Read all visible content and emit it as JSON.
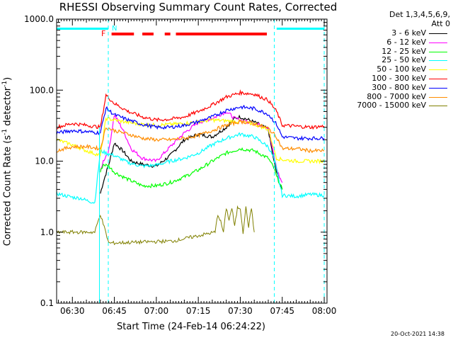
{
  "header": {
    "title": "RHESSI Observing Summary Count Rates, Corrected",
    "detectors_line1": "Det 1,3,4,5,6,9,",
    "detectors_line2": "Att 0"
  },
  "footer": {
    "timestamp": "20-Oct-2021 14:38"
  },
  "flags": {
    "f_label": "F",
    "n_label": "N"
  },
  "colors": {
    "axes": "#000000",
    "flag_f": "#ff0000",
    "flag_n": "#00ffff"
  },
  "chart_data": {
    "type": "line",
    "title": "RHESSI Observing Summary Count Rates, Corrected",
    "xlabel": "Start Time (24-Feb-14 06:24:22)",
    "ylabel_main": "Corrected Count Rate (s",
    "ylabel_sup": "-1",
    "ylabel_mid": " detector",
    "ylabel_end": ")",
    "yscale": "log",
    "xlim": [
      "06:24:22",
      "08:01:00"
    ],
    "ylim": [
      0.1,
      1000.0
    ],
    "x_ticks": [
      "06:30",
      "06:45",
      "07:00",
      "07:15",
      "07:30",
      "07:45",
      "08:00"
    ],
    "y_ticks": [
      {
        "value": 0.1,
        "label": "0.1"
      },
      {
        "value": 1,
        "label": "1.0"
      },
      {
        "value": 10,
        "label": "10.0"
      },
      {
        "value": 100,
        "label": "100.0"
      },
      {
        "value": 1000,
        "label": "1000.0"
      }
    ],
    "legend_position": "outside-right",
    "flag_bars": {
      "saa": [
        [
          "06:24:22",
          "06:42:50"
        ],
        [
          "07:43:00",
          "08:00:00"
        ]
      ],
      "flare": [
        [
          "06:44:00",
          "06:52:00"
        ],
        [
          "06:55:00",
          "06:59:00"
        ],
        [
          "07:03:00",
          "07:05:00"
        ],
        [
          "07:07:00",
          "07:39:30"
        ]
      ]
    },
    "night_markers": [
      "06:42:50",
      "07:42:10",
      "08:00:00"
    ],
    "series": [
      {
        "name": "3 - 6 keV",
        "color": "#000000",
        "x": [
          "06:40",
          "06:41",
          "06:43",
          "06:45",
          "06:48",
          "06:51",
          "06:55",
          "07:00",
          "07:05",
          "07:10",
          "07:15",
          "07:20",
          "07:25",
          "07:28",
          "07:30",
          "07:33",
          "07:36",
          "07:40",
          "07:42",
          "07:43",
          "07:44",
          "07:45"
        ],
        "values": [
          3.5,
          5,
          9,
          18,
          14,
          10,
          9,
          8.5,
          12,
          20,
          24,
          22,
          30,
          40,
          42,
          38,
          34,
          28,
          10,
          7,
          5,
          4
        ]
      },
      {
        "name": "6 - 12 keV",
        "color": "#ff00ff",
        "x": [
          "06:40",
          "06:41",
          "06:43",
          "06:45",
          "06:48",
          "06:51",
          "06:55",
          "07:00",
          "07:05",
          "07:10",
          "07:15",
          "07:20",
          "07:25",
          "07:28",
          "07:30",
          "07:33",
          "07:36",
          "07:40",
          "07:42",
          "07:43",
          "07:44",
          "07:45"
        ],
        "values": [
          7,
          10,
          14,
          45,
          28,
          15,
          11,
          10,
          16,
          25,
          35,
          40,
          50,
          40,
          38,
          35,
          33,
          30,
          12,
          8,
          6,
          5
        ]
      },
      {
        "name": "12 - 25 keV",
        "color": "#00ff00",
        "x": [
          "06:40",
          "06:41",
          "06:43",
          "06:45",
          "06:50",
          "06:55",
          "07:00",
          "07:05",
          "07:10",
          "07:15",
          "07:20",
          "07:25",
          "07:30",
          "07:35",
          "07:40",
          "07:42",
          "07:43",
          "07:44",
          "07:45"
        ],
        "values": [
          7,
          9,
          8.5,
          7,
          5.5,
          4.5,
          4.5,
          5,
          6,
          7.5,
          10,
          13,
          15,
          14,
          11,
          8,
          6,
          5,
          4
        ]
      },
      {
        "name": "25 - 50 keV",
        "color": "#00ffff",
        "x": [
          "06:24:22",
          "06:27",
          "06:30",
          "06:33",
          "06:35",
          "06:38",
          "06:40",
          "06:42",
          "06:45",
          "06:50",
          "06:55",
          "07:00",
          "07:05",
          "07:10",
          "07:15",
          "07:20",
          "07:25",
          "07:30",
          "07:35",
          "07:40",
          "07:42",
          "07:43",
          "07:45",
          "07:50",
          "07:55",
          "08:00"
        ],
        "values": [
          3.5,
          3.3,
          3.1,
          3,
          2.8,
          2.6,
          14,
          13,
          12,
          9.5,
          8.5,
          8.8,
          10,
          11,
          13,
          17,
          21,
          24,
          22,
          16,
          11,
          7.5,
          3.3,
          3.2,
          3.4,
          3.3
        ]
      },
      {
        "name": "50 - 100 keV",
        "color": "#ffff00",
        "x": [
          "06:24:22",
          "06:30",
          "06:35",
          "06:40",
          "06:42",
          "06:45",
          "06:50",
          "06:55",
          "07:00",
          "07:10",
          "07:20",
          "07:30",
          "07:35",
          "07:40",
          "07:43",
          "07:45",
          "07:50",
          "07:55",
          "08:00"
        ],
        "values": [
          20,
          17,
          14,
          12,
          40,
          38,
          35,
          33,
          32,
          34,
          38,
          36,
          33,
          28,
          11,
          10.5,
          10,
          10,
          10
        ]
      },
      {
        "name": "100 - 300 keV",
        "color": "#ff0000",
        "x": [
          "06:24:22",
          "06:30",
          "06:35",
          "06:40",
          "06:42",
          "06:45",
          "06:50",
          "06:55",
          "07:00",
          "07:05",
          "07:10",
          "07:15",
          "07:20",
          "07:25",
          "07:30",
          "07:35",
          "07:40",
          "07:43",
          "07:45",
          "07:50",
          "07:55",
          "08:00"
        ],
        "values": [
          30,
          34,
          32,
          30,
          85,
          65,
          50,
          42,
          38,
          39,
          42,
          50,
          62,
          80,
          92,
          88,
          72,
          50,
          32,
          31,
          30,
          31
        ]
      },
      {
        "name": "300 - 800 keV",
        "color": "#0000ff",
        "x": [
          "06:24:22",
          "06:30",
          "06:35",
          "06:40",
          "06:42",
          "06:45",
          "06:50",
          "06:55",
          "07:00",
          "07:05",
          "07:10",
          "07:15",
          "07:20",
          "07:25",
          "07:30",
          "07:35",
          "07:40",
          "07:43",
          "07:45",
          "07:50",
          "07:55",
          "08:00"
        ],
        "values": [
          25,
          27,
          26,
          25,
          56,
          45,
          38,
          33,
          30,
          30,
          32,
          36,
          42,
          52,
          58,
          55,
          46,
          33,
          22,
          21,
          21,
          21
        ]
      },
      {
        "name": "800 - 7000 keV",
        "color": "#ff8c00",
        "x": [
          "06:24:22",
          "06:30",
          "06:35",
          "06:40",
          "06:42",
          "06:45",
          "06:50",
          "06:55",
          "07:00",
          "07:05",
          "07:10",
          "07:15",
          "07:20",
          "07:25",
          "07:30",
          "07:35",
          "07:40",
          "07:43",
          "07:45",
          "07:50",
          "07:55",
          "08:00"
        ],
        "values": [
          14,
          16,
          16,
          15,
          30,
          27,
          24,
          21,
          20,
          20,
          21,
          23,
          27,
          32,
          36,
          34,
          29,
          22,
          15,
          15,
          14,
          14
        ]
      },
      {
        "name": "7000 - 15000 keV",
        "color": "#808000",
        "x": [
          "06:24:22",
          "06:36",
          "06:38",
          "06:40",
          "06:43",
          "07:06",
          "07:21",
          "07:22",
          "07:23",
          "07:24",
          "07:25",
          "07:26",
          "07:27",
          "07:28",
          "07:29",
          "07:30",
          "07:31",
          "07:32",
          "07:33",
          "07:34",
          "07:35"
        ],
        "values": [
          1,
          1,
          1,
          1.8,
          0.7,
          0.75,
          1,
          1.8,
          1.4,
          1,
          2.2,
          1.5,
          2.2,
          1.2,
          2.2,
          2.2,
          1,
          2.2,
          1.2,
          2.2,
          1
        ]
      }
    ]
  }
}
